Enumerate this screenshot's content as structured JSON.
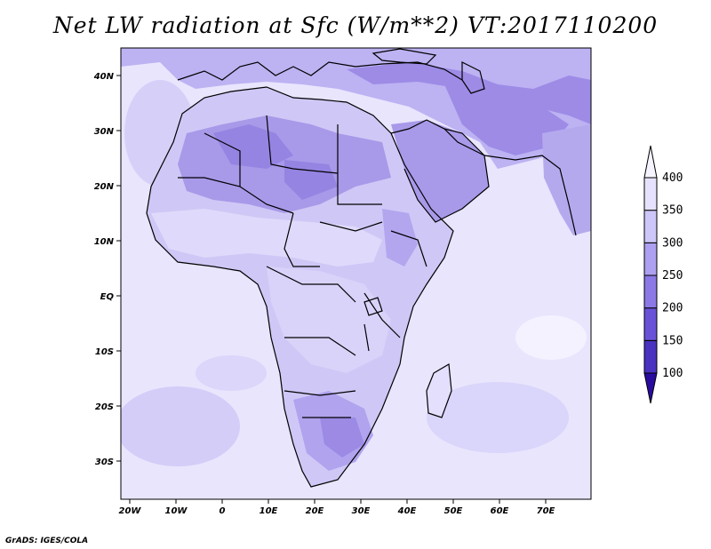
{
  "title": "Net LW radiation at Sfc (W/m**2) VT:2017110200",
  "credit": "GrADS: IGES/COLA",
  "lon_ticks": [
    "20W",
    "10W",
    "0",
    "10E",
    "20E",
    "30E",
    "40E",
    "50E",
    "60E",
    "70E"
  ],
  "lat_ticks": [
    "40N",
    "30N",
    "20N",
    "10N",
    "EQ",
    "10S",
    "20S",
    "30S"
  ],
  "colorbar": {
    "levels": [
      "100",
      "150",
      "200",
      "250",
      "300",
      "350",
      "400"
    ],
    "colors": [
      "#2a0ba0",
      "#4a32c0",
      "#6a52d8",
      "#8c78e6",
      "#aea0f0",
      "#cdc6f8",
      "#e6e2fd",
      "#f6f4ff"
    ]
  },
  "colors": {
    "ocean": "#e8e5fd",
    "land": "#cfc8f6",
    "dry": "#a99ae9",
    "deep": "#8b78e0"
  }
}
